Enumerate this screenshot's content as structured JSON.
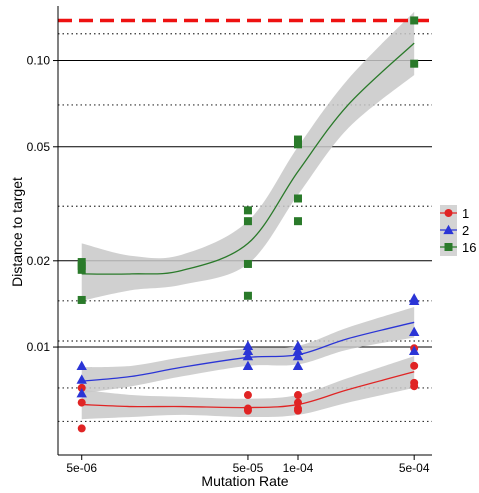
{
  "chart_data": {
    "type": "scatter",
    "title": "",
    "xlabel": "Mutation Rate",
    "ylabel": "Distance to target",
    "x_scale": "log",
    "y_scale": "log",
    "xlim": [
      3.6e-06,
      0.00064
    ],
    "ylim": [
      0.0042,
      0.155
    ],
    "x_ticks": [
      5e-06,
      5e-05,
      0.0001,
      0.0005
    ],
    "x_tick_labels": [
      "5e-06",
      "5e-05",
      "1e-04",
      "5e-04"
    ],
    "y_ticks": [
      0.01,
      0.02,
      0.05,
      0.1
    ],
    "y_tick_labels": [
      "0.01",
      "0.02",
      "0.05",
      "0.10"
    ],
    "solid_gridlines_y": [
      0.01,
      0.02,
      0.05,
      0.1
    ],
    "dotted_gridlines_y": [
      0.0055,
      0.0072,
      0.0105,
      0.0145,
      0.031,
      0.07,
      0.124
    ],
    "target_line_y": 0.138,
    "target_line_color": "#ee1111",
    "legend_position": "right",
    "series": [
      {
        "name": "1",
        "marker": "circle",
        "color": "#e02424",
        "points": [
          [
            5e-06,
            0.0072
          ],
          [
            5e-06,
            0.0064
          ],
          [
            5e-06,
            0.0052
          ],
          [
            5e-05,
            0.0068
          ],
          [
            5e-05,
            0.0061
          ],
          [
            5e-05,
            0.006
          ],
          [
            0.0001,
            0.0068
          ],
          [
            0.0001,
            0.0064
          ],
          [
            0.0001,
            0.0061
          ],
          [
            0.0001,
            0.006
          ],
          [
            0.0005,
            0.0099
          ],
          [
            0.0005,
            0.0086
          ],
          [
            0.0005,
            0.0075
          ],
          [
            0.0005,
            0.0073
          ]
        ],
        "smooth": [
          [
            5e-06,
            0.0063
          ],
          [
            1e-05,
            0.0062
          ],
          [
            2e-05,
            0.0062
          ],
          [
            5e-05,
            0.00615
          ],
          [
            0.0001,
            0.0063
          ],
          [
            0.0002,
            0.0071
          ],
          [
            0.0005,
            0.0082
          ]
        ],
        "band": [
          [
            5e-06,
            0.0056,
            0.0071
          ],
          [
            1e-05,
            0.0057,
            0.0068
          ],
          [
            2e-05,
            0.0058,
            0.0067
          ],
          [
            5e-05,
            0.0057,
            0.0066
          ],
          [
            0.0001,
            0.0058,
            0.0068
          ],
          [
            0.0002,
            0.0064,
            0.0078
          ],
          [
            0.0005,
            0.0072,
            0.0093
          ]
        ]
      },
      {
        "name": "2",
        "marker": "triangle",
        "color": "#2b35d6",
        "points": [
          [
            5e-06,
            0.0086
          ],
          [
            5e-06,
            0.0077
          ],
          [
            5e-06,
            0.0069
          ],
          [
            5e-05,
            0.0101
          ],
          [
            5e-05,
            0.0097
          ],
          [
            5e-05,
            0.0093
          ],
          [
            5e-05,
            0.0086
          ],
          [
            0.0001,
            0.0101
          ],
          [
            0.0001,
            0.0097
          ],
          [
            0.0001,
            0.0093
          ],
          [
            0.0001,
            0.0086
          ],
          [
            0.0005,
            0.0148
          ],
          [
            0.0005,
            0.0145
          ],
          [
            0.0005,
            0.0113
          ],
          [
            0.0005,
            0.0097
          ]
        ],
        "smooth": [
          [
            5e-06,
            0.0076
          ],
          [
            1e-05,
            0.0079
          ],
          [
            2e-05,
            0.0085
          ],
          [
            5e-05,
            0.0092
          ],
          [
            0.0001,
            0.0094
          ],
          [
            0.0002,
            0.0107
          ],
          [
            0.0005,
            0.0122
          ]
        ],
        "band": [
          [
            5e-06,
            0.0069,
            0.0085
          ],
          [
            1e-05,
            0.0073,
            0.0086
          ],
          [
            2e-05,
            0.0079,
            0.0092
          ],
          [
            5e-05,
            0.0086,
            0.0099
          ],
          [
            0.0001,
            0.0087,
            0.0101
          ],
          [
            0.0002,
            0.0098,
            0.0117
          ],
          [
            0.0005,
            0.0108,
            0.0138
          ]
        ]
      },
      {
        "name": "16",
        "marker": "square",
        "color": "#2a7a2a",
        "points": [
          [
            5e-06,
            0.0198
          ],
          [
            5e-06,
            0.0192
          ],
          [
            5e-06,
            0.0186
          ],
          [
            5e-06,
            0.0146
          ],
          [
            5e-05,
            0.03
          ],
          [
            5e-05,
            0.0275
          ],
          [
            5e-05,
            0.0195
          ],
          [
            5e-05,
            0.0151
          ],
          [
            0.0001,
            0.053
          ],
          [
            0.0001,
            0.051
          ],
          [
            0.0001,
            0.033
          ],
          [
            0.0001,
            0.0275
          ],
          [
            0.0005,
            0.138
          ],
          [
            0.0005,
            0.0975
          ]
        ],
        "smooth": [
          [
            5e-06,
            0.018
          ],
          [
            1e-05,
            0.018
          ],
          [
            2e-05,
            0.0185
          ],
          [
            5e-05,
            0.023
          ],
          [
            0.0001,
            0.041
          ],
          [
            0.0002,
            0.07
          ],
          [
            0.0005,
            0.115
          ]
        ],
        "band": [
          [
            5e-06,
            0.0145,
            0.023
          ],
          [
            1e-05,
            0.0158,
            0.0208
          ],
          [
            2e-05,
            0.0165,
            0.021
          ],
          [
            5e-05,
            0.0195,
            0.0275
          ],
          [
            0.0001,
            0.034,
            0.05
          ],
          [
            0.0002,
            0.058,
            0.086
          ],
          [
            0.0005,
            0.089,
            0.148
          ]
        ]
      }
    ]
  }
}
